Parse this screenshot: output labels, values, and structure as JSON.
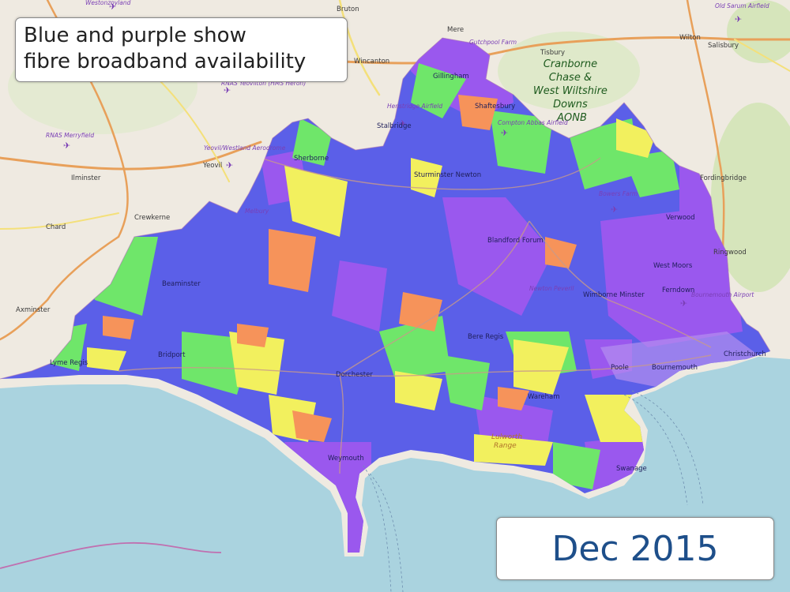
{
  "caption": {
    "line1": "Blue and purple show",
    "line2": "fibre broadband availability"
  },
  "date_label": "Dec 2015",
  "colors": {
    "sea": "#aad3df",
    "land": "#efeae1",
    "fibre_blue": "#5b5fe8",
    "fibre_purple": "#9a58ee",
    "green": "#6fe66a",
    "yellow": "#f2f05e",
    "orange": "#f6935a",
    "road_major": "#e8a05a",
    "road_yellow": "#f4e07a"
  },
  "places": [
    {
      "name": "Westonzoyland"
    },
    {
      "name": "Bruton"
    },
    {
      "name": "Mere"
    },
    {
      "name": "Gutchpool Farm"
    },
    {
      "name": "Tisbury"
    },
    {
      "name": "Wilton"
    },
    {
      "name": "Salisbury"
    },
    {
      "name": "Old Sarum Airfield"
    },
    {
      "name": "Wincanton"
    },
    {
      "name": "Gillingham"
    },
    {
      "name": "RNAS Yeovilton (HMS Heron)"
    },
    {
      "name": "Henstridge Airfield"
    },
    {
      "name": "Shaftesbury"
    },
    {
      "name": "Compton Abbas Airfield"
    },
    {
      "name": "RNAS Merryfield"
    },
    {
      "name": "Yeovil/Westland Aerodrome"
    },
    {
      "name": "Stalbridge"
    },
    {
      "name": "Sherborne"
    },
    {
      "name": "Yeovil"
    },
    {
      "name": "Ilminster"
    },
    {
      "name": "Sturminster Newton"
    },
    {
      "name": "Fordingbridge"
    },
    {
      "name": "Crewkerne"
    },
    {
      "name": "Melbury"
    },
    {
      "name": "Bowers Farm"
    },
    {
      "name": "Verwood"
    },
    {
      "name": "Chard"
    },
    {
      "name": "Blandford Forum"
    },
    {
      "name": "Ringwood"
    },
    {
      "name": "West Moors"
    },
    {
      "name": "Beaminster"
    },
    {
      "name": "Ferndown"
    },
    {
      "name": "Bournemouth Airport"
    },
    {
      "name": "Axminster"
    },
    {
      "name": "Newton Peveril"
    },
    {
      "name": "Wimborne Minster"
    },
    {
      "name": "Bridport"
    },
    {
      "name": "Bere Regis"
    },
    {
      "name": "Lyme Regis"
    },
    {
      "name": "Christchurch"
    },
    {
      "name": "Poole"
    },
    {
      "name": "Bournemouth"
    },
    {
      "name": "Dorchester"
    },
    {
      "name": "Wareham"
    },
    {
      "name": "Weymouth"
    },
    {
      "name": "Swanage"
    }
  ],
  "aonb_label": [
    "Cranborne",
    "Chase &",
    "West Wiltshire",
    "Downs",
    "AONB"
  ],
  "range_label": [
    "Lulworth",
    "Range"
  ]
}
